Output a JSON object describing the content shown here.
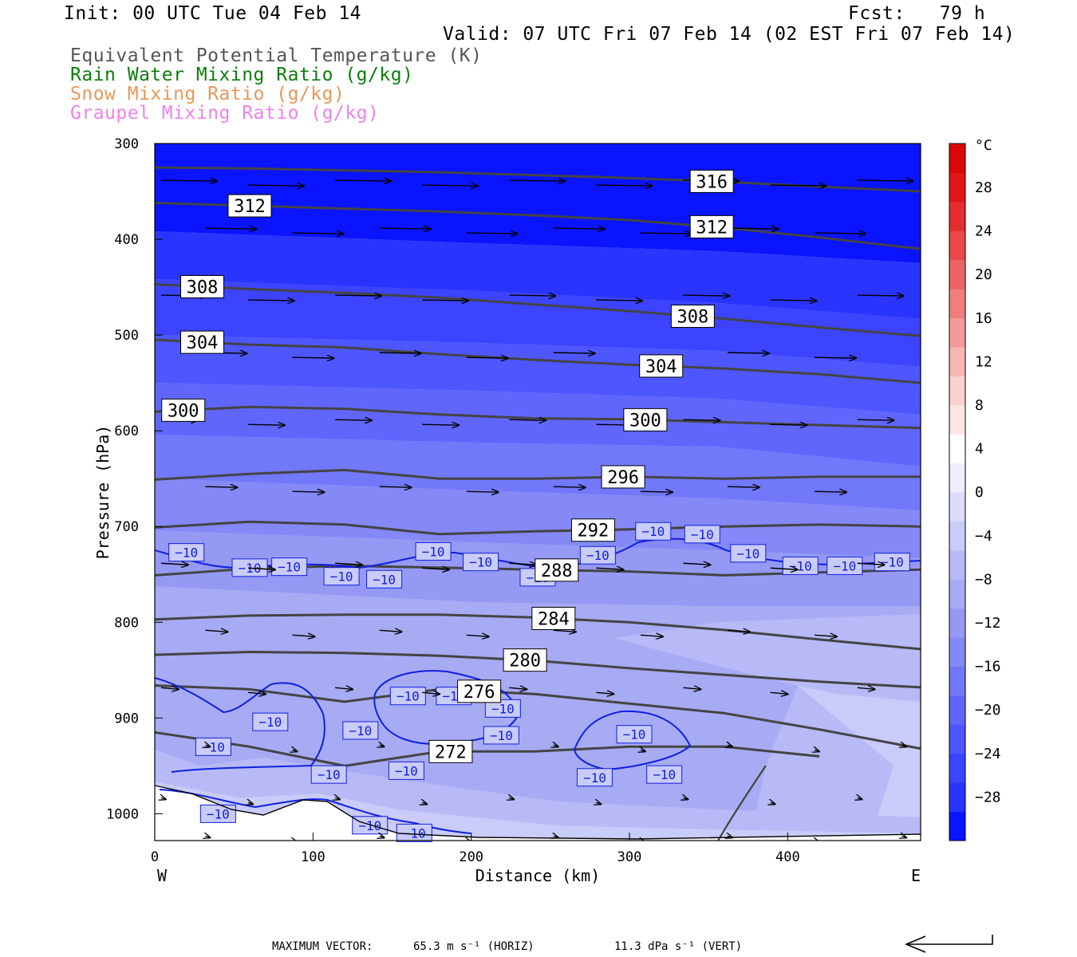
{
  "header": {
    "init": "Init: 00 UTC Tue 04 Feb 14",
    "fcst": "Fcst:   79 h",
    "valid": "Valid: 07 UTC Fri 07 Feb 14 (02 EST Fri 07 Feb 14)"
  },
  "fields": [
    {
      "label": "Equivalent Potential Temperature (K)",
      "color": "#555555"
    },
    {
      "label": "Rain Water Mixing Ratio (g/kg)",
      "color": "#0a7d0a"
    },
    {
      "label": "Snow Mixing Ratio (g/kg)",
      "color": "#e8975a"
    },
    {
      "label": "Graupel Mixing Ratio (g/kg)",
      "color": "#ee82ee"
    }
  ],
  "footer": {
    "max_vector_label": "MAXIMUM VECTOR:",
    "horiz": "65.3 m s⁻¹ (HORIZ)",
    "vert": "11.3 dPa s⁻¹ (VERT)"
  },
  "chart_data": {
    "type": "heatmap",
    "title": "",
    "xlabel": "Distance (km)",
    "ylabel": "Pressure (hPa)",
    "xlim": [
      0,
      484
    ],
    "ylim": [
      1028,
      300
    ],
    "x_ticks": [
      0,
      100,
      200,
      300,
      400
    ],
    "y_ticks": [
      300,
      400,
      500,
      600,
      700,
      800,
      900,
      1000
    ],
    "x_end_labels": {
      "left": "W",
      "right": "E"
    },
    "colorbar": {
      "unit": "°C",
      "levels": [
        -32,
        -28,
        -24,
        -20,
        -16,
        -12,
        -8,
        -4,
        0,
        4,
        8,
        12,
        16,
        20,
        24,
        28,
        32
      ],
      "tick_labels": [
        "28",
        "24",
        "20",
        "16",
        "12",
        "8",
        "4",
        "0",
        "−4",
        "−8",
        "−12",
        "−16",
        "−20",
        "−24",
        "−28"
      ],
      "colors": [
        "#0a14ff",
        "#2a34ff",
        "#3c44ff",
        "#4e56fe",
        "#6066fc",
        "#7278fa",
        "#8489f7",
        "#9599f3",
        "#a7abf4",
        "#b7baf6",
        "#c9cbf8",
        "#dcdcfa",
        "#ededfc",
        "#ffffff",
        "#fde6e6",
        "#fbd0d0",
        "#f8b5b5",
        "#f59a9a",
        "#f07e7e",
        "#ec6464",
        "#e84848",
        "#e42e2e",
        "#e01818",
        "#dc0606"
      ]
    },
    "theta_e": [
      {
        "label": "316",
        "x": [
          0,
          60,
          120,
          180,
          240,
          300,
          360,
          420,
          484
        ],
        "p": [
          325,
          326,
          328,
          330,
          333,
          336,
          340,
          345,
          350
        ]
      },
      {
        "label": "312",
        "x": [
          0,
          60,
          120,
          180,
          240,
          300,
          360,
          420,
          484
        ],
        "p": [
          362,
          365,
          368,
          371,
          375,
          380,
          388,
          398,
          410
        ]
      },
      {
        "label": "308",
        "x": [
          0,
          60,
          120,
          180,
          240,
          300,
          360,
          420,
          484
        ],
        "p": [
          447,
          452,
          456,
          461,
          468,
          475,
          483,
          492,
          501
        ]
      },
      {
        "label": "304",
        "x": [
          0,
          60,
          120,
          180,
          240,
          300,
          360,
          420,
          484
        ],
        "p": [
          505,
          510,
          513,
          520,
          526,
          531,
          535,
          541,
          550
        ]
      },
      {
        "label": "300",
        "x": [
          0,
          60,
          120,
          180,
          240,
          300,
          360,
          420,
          484
        ],
        "p": [
          580,
          575,
          577,
          583,
          587,
          588,
          591,
          594,
          597
        ]
      },
      {
        "label": "296",
        "x": [
          0,
          60,
          120,
          180,
          240,
          300,
          360,
          420,
          484
        ],
        "p": [
          651,
          645,
          641,
          650,
          650,
          648,
          650,
          648,
          648
        ]
      },
      {
        "label": "292",
        "x": [
          0,
          60,
          120,
          180,
          240,
          300,
          360,
          420,
          484
        ],
        "p": [
          701,
          695,
          698,
          708,
          705,
          703,
          700,
          698,
          700
        ]
      },
      {
        "label": "288",
        "x": [
          0,
          60,
          120,
          180,
          240,
          300,
          360,
          420,
          484
        ],
        "p": [
          751,
          744,
          741,
          743,
          745,
          747,
          751,
          748,
          745
        ]
      },
      {
        "label": "284",
        "x": [
          0,
          60,
          120,
          180,
          240,
          300,
          360,
          420,
          484
        ],
        "p": [
          797,
          793,
          792,
          792,
          795,
          800,
          808,
          818,
          828
        ]
      },
      {
        "label": "280",
        "x": [
          0,
          60,
          120,
          180,
          240,
          300,
          360,
          420,
          484
        ],
        "p": [
          834,
          831,
          832,
          835,
          840,
          848,
          855,
          862,
          868
        ]
      },
      {
        "label": "276",
        "x": [
          0,
          60,
          120,
          180,
          240,
          300,
          360,
          420,
          484
        ],
        "p": [
          866,
          870,
          883,
          870,
          875,
          885,
          895,
          912,
          932
        ]
      },
      {
        "label": "272",
        "x": [
          0,
          60,
          120,
          180,
          240,
          300,
          360,
          420
        ],
        "p": [
          915,
          930,
          950,
          935,
          935,
          930,
          930,
          940
        ]
      }
    ],
    "temperature_minus10_label": "−10"
  }
}
